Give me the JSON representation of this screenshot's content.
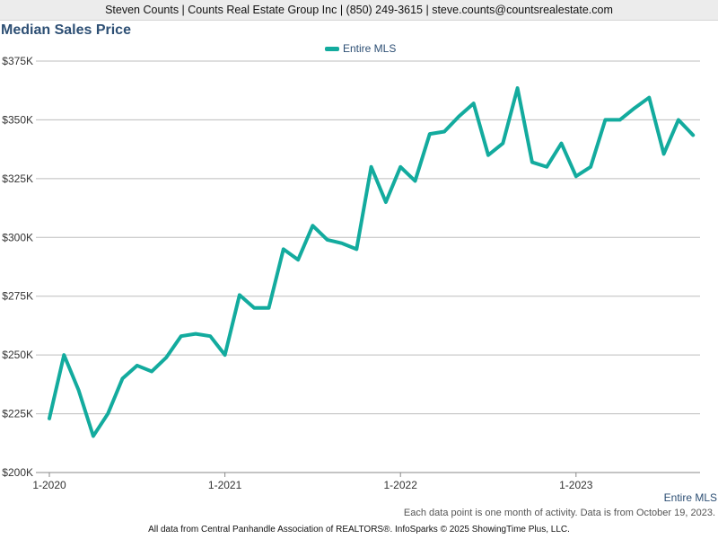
{
  "header": {
    "agent_line": "Steven Counts | Counts Real Estate Group Inc | (850) 249-3615 | steve.counts@countsrealestate.com"
  },
  "colors": {
    "series": "#13ab9e",
    "title": "#2d4f74",
    "grid": "#bdbdbd",
    "axis": "#888888"
  },
  "chart_data": {
    "type": "line",
    "title": "Median Sales Price",
    "legend_position": "top-center",
    "grid": true,
    "ylim": [
      200000,
      375000
    ],
    "y_ticks": [
      200000,
      225000,
      250000,
      275000,
      300000,
      325000,
      350000,
      375000
    ],
    "y_tick_labels": [
      "$200K",
      "$225K",
      "$250K",
      "$275K",
      "$300K",
      "$325K",
      "$350K",
      "$375K"
    ],
    "x_tick_labels": [
      "1-2020",
      "1-2021",
      "1-2022",
      "1-2023"
    ],
    "x": [
      "1-2020",
      "2-2020",
      "3-2020",
      "4-2020",
      "5-2020",
      "6-2020",
      "7-2020",
      "8-2020",
      "9-2020",
      "10-2020",
      "11-2020",
      "12-2020",
      "1-2021",
      "2-2021",
      "3-2021",
      "4-2021",
      "5-2021",
      "6-2021",
      "7-2021",
      "8-2021",
      "9-2021",
      "10-2021",
      "11-2021",
      "12-2021",
      "1-2022",
      "2-2022",
      "3-2022",
      "4-2022",
      "5-2022",
      "6-2022",
      "7-2022",
      "8-2022",
      "9-2022",
      "10-2022",
      "11-2022",
      "12-2022",
      "1-2023",
      "2-2023",
      "3-2023",
      "4-2023",
      "5-2023",
      "6-2023",
      "7-2023",
      "8-2023",
      "9-2023"
    ],
    "series": [
      {
        "name": "Entire MLS",
        "values": [
          223000,
          250000,
          235000,
          215500,
          225000,
          240000,
          245500,
          243000,
          249000,
          258000,
          259000,
          258000,
          250000,
          275500,
          270000,
          270000,
          295000,
          290500,
          305000,
          299000,
          297500,
          295000,
          330000,
          315000,
          330000,
          324000,
          344000,
          345000,
          351500,
          357000,
          335000,
          340000,
          363500,
          332000,
          330000,
          340000,
          326000,
          330000,
          350000,
          350000,
          355000,
          359500,
          335500,
          350000,
          343500
        ]
      }
    ]
  },
  "series_end_label": "Entire MLS",
  "note": "Each data point is one month of activity. Data is from October 19, 2023.",
  "footer": "All data from Central Panhandle Association of REALTORS®. InfoSparks © 2025 ShowingTime Plus, LLC."
}
